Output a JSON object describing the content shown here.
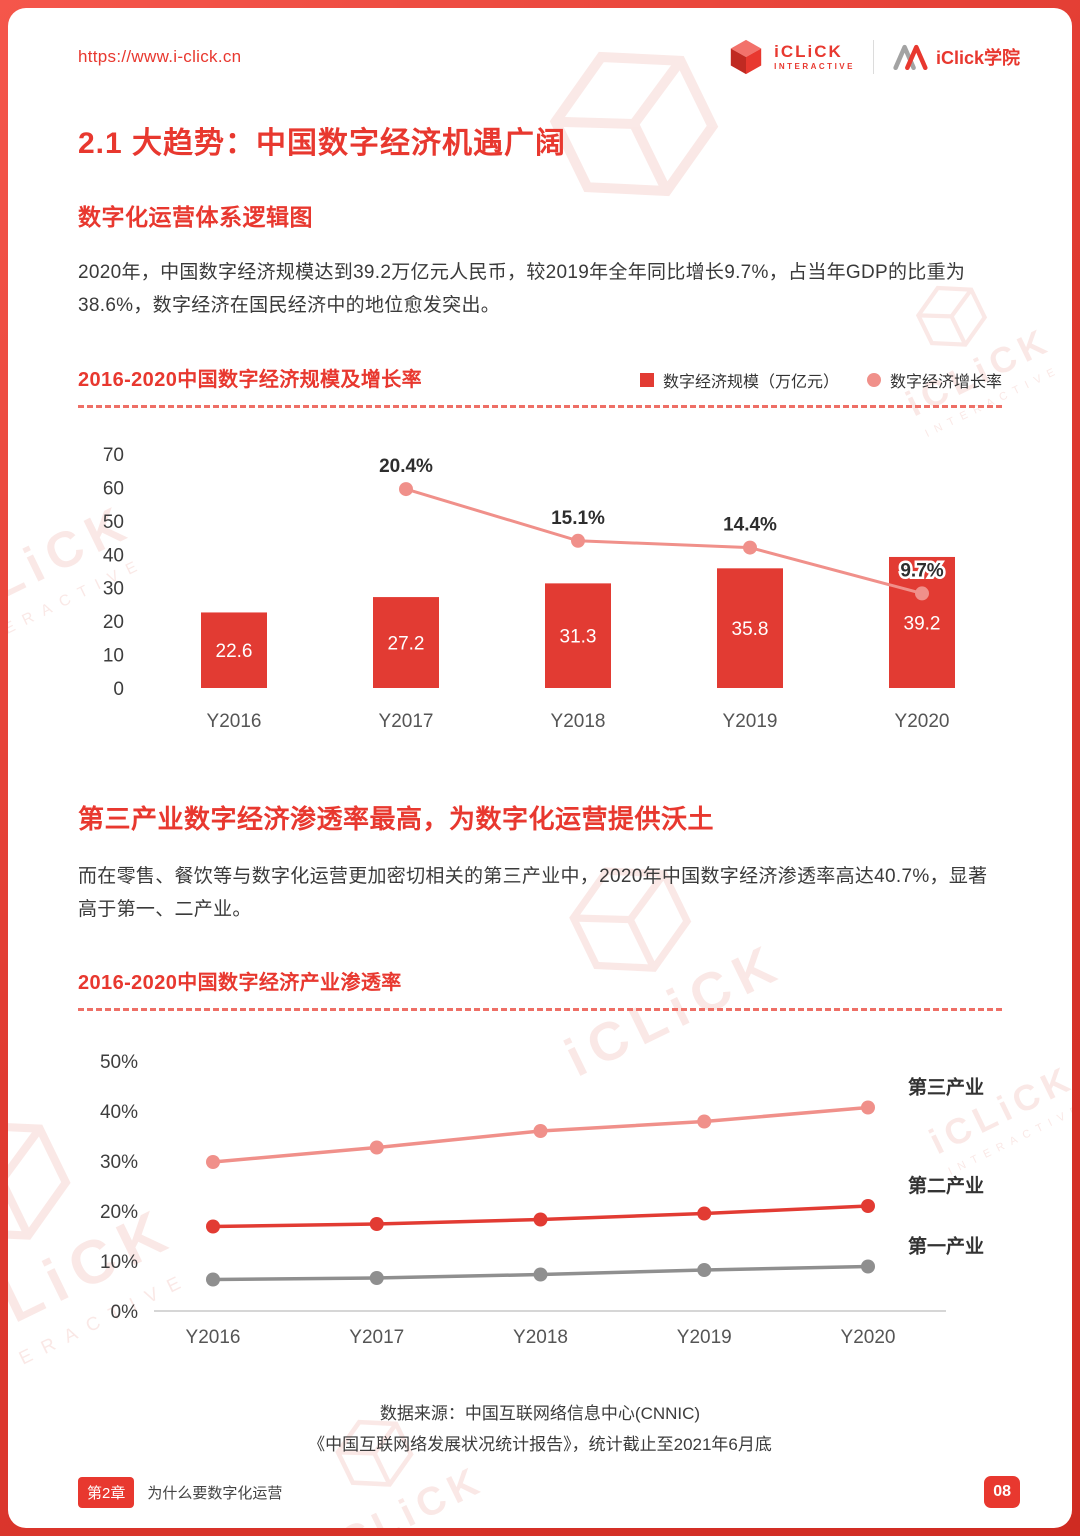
{
  "theme": {
    "accent": "#e8382f",
    "bar_red": "#e23b33",
    "line_pink": "#f0908a",
    "line_gray": "#8f8f8f"
  },
  "header": {
    "url": "https://www.i-click.cn",
    "logo1_name": "iCLiCK",
    "logo1_sub": "INTERACTIVE",
    "logo2_name": "iClick学院"
  },
  "watermark": {
    "brand": "iCLiCK",
    "sub": "INTERACTIVE"
  },
  "content": {
    "section_title": "2.1 大趋势：中国数字经济机遇广阔",
    "subtitle": "数字化运营体系逻辑图",
    "paragraph1": "2020年，中国数字经济规模达到39.2万亿元人民币，较2019年全年同比增长9.7%，占当年GDP的比重为38.6%，数字经济在国民经济中的地位愈发突出。",
    "section2_title": "第三产业数字经济渗透率最高，为数字化运营提供沃土",
    "paragraph2": "而在零售、餐饮等与数字化运营更加密切相关的第三产业中，2020年中国数字经济渗透率高达40.7%，显著高于第一、二产业。",
    "source_line1": "数据来源：中国互联网络信息中心(CNNIC)",
    "source_line2": "《中国互联网络发展状况统计报告》，统计截止至2021年6月底"
  },
  "footer": {
    "chapter_badge": "第2章",
    "chapter_title": "为什么要数字化运营",
    "page_number": "08"
  },
  "chart_data": [
    {
      "type": "bar",
      "title": "2016-2020中国数字经济规模及增长率",
      "categories": [
        "Y2016",
        "Y2017",
        "Y2018",
        "Y2019",
        "Y2020"
      ],
      "series": [
        {
          "name": "数字经济规模（万亿元）",
          "chart": "bar",
          "values": [
            22.6,
            27.2,
            31.3,
            35.8,
            39.2
          ],
          "color": "#e23b33"
        },
        {
          "name": "数字经济增长率",
          "chart": "line",
          "values": [
            null,
            20.4,
            15.1,
            14.4,
            9.7
          ],
          "labels": [
            "",
            "20.4%",
            "15.1%",
            "14.4%",
            "9.7%"
          ],
          "color": "#f0908a"
        }
      ],
      "ylim": [
        0,
        70
      ],
      "yticks": [
        70,
        60,
        50,
        40,
        30,
        20,
        10,
        0
      ],
      "secondary_ylim": [
        0,
        24
      ],
      "legend_position": "top-right",
      "grid": false
    },
    {
      "type": "line",
      "title": "2016-2020中国数字经济产业渗透率",
      "categories": [
        "Y2016",
        "Y2017",
        "Y2018",
        "Y2019",
        "Y2020"
      ],
      "series": [
        {
          "name": "第三产业",
          "values": [
            29.8,
            32.7,
            36.0,
            37.9,
            40.7
          ],
          "color": "#f0908a"
        },
        {
          "name": "第二产业",
          "values": [
            16.9,
            17.4,
            18.3,
            19.5,
            21.0
          ],
          "color": "#e23b33"
        },
        {
          "name": "第一产业",
          "values": [
            6.3,
            6.6,
            7.3,
            8.2,
            8.9
          ],
          "color": "#8f8f8f"
        }
      ],
      "ylim": [
        0,
        50
      ],
      "yticks": [
        50,
        40,
        30,
        20,
        10,
        0
      ],
      "ytick_suffix": "%",
      "label_position": "right",
      "grid": false
    }
  ]
}
